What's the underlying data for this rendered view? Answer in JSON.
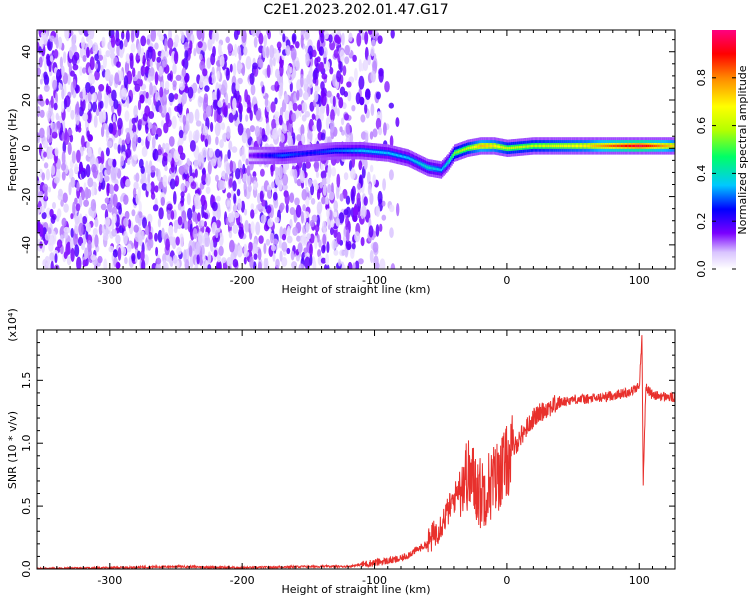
{
  "title": "C2E1.2023.202.01.47.G17",
  "chart_data": [
    {
      "type": "heatmap",
      "xlabel": "Height of straight line (km)",
      "ylabel": "Frequency (Hz)",
      "xlim": [
        -355,
        127
      ],
      "ylim": [
        -50,
        49
      ],
      "xticks": [
        -300,
        -200,
        -100,
        0,
        100
      ],
      "yticks": [
        -40,
        -20,
        0,
        20,
        40
      ],
      "colorbar": {
        "label": "Normalized spectral amplitude",
        "range": [
          0,
          1
        ],
        "ticks": [
          "0.0",
          "0.2",
          "0.4",
          "0.6",
          "0.8"
        ],
        "colors": [
          "#ffffff",
          "#d9c4ff",
          "#7a00ff",
          "#0000ff",
          "#00c8ff",
          "#00ff66",
          "#b4ff00",
          "#ffff00",
          "#ff8800",
          "#ff0000",
          "#ff0080"
        ]
      },
      "signal_band": {
        "x": [
          -195,
          -170,
          -150,
          -130,
          -110,
          -90,
          -75,
          -60,
          -50,
          -45,
          -40,
          -30,
          -20,
          -10,
          0,
          20,
          40,
          60,
          80,
          100,
          127
        ],
        "frequency": [
          -3,
          -3,
          -2,
          -1,
          -1,
          -2,
          -4,
          -8,
          -9,
          -6,
          -2,
          0,
          1,
          1,
          0,
          1,
          1,
          1,
          1,
          1,
          1
        ],
        "amplitude": [
          0.15,
          0.3,
          0.25,
          0.3,
          0.35,
          0.35,
          0.35,
          0.4,
          0.35,
          0.4,
          0.55,
          0.6,
          0.75,
          0.7,
          0.6,
          0.6,
          0.65,
          0.7,
          0.85,
          0.95,
          0.7
        ]
      }
    },
    {
      "type": "line",
      "xlabel": "Height of straight line (km)",
      "ylabel": "SNR (10 * v/v)",
      "y_multiplier": "(x10⁴)",
      "xlim": [
        -355,
        127
      ],
      "ylim": [
        0,
        1.9
      ],
      "xticks": [
        -300,
        -200,
        -100,
        0,
        100
      ],
      "yticks": [
        "0.0",
        "0.5",
        "1.0",
        "1.5"
      ],
      "color": "#e8302c",
      "x": [
        -355,
        -300,
        -250,
        -200,
        -150,
        -120,
        -100,
        -80,
        -60,
        -50,
        -40,
        -35,
        -30,
        -25,
        -20,
        -10,
        0,
        10,
        20,
        30,
        40,
        50,
        60,
        70,
        80,
        90,
        95,
        100,
        102,
        103,
        105,
        110,
        120,
        127
      ],
      "y": [
        0.0,
        0.01,
        0.02,
        0.01,
        0.02,
        0.02,
        0.05,
        0.08,
        0.2,
        0.35,
        0.55,
        0.7,
        0.75,
        0.7,
        0.6,
        0.7,
        0.85,
        1.05,
        1.2,
        1.28,
        1.32,
        1.35,
        1.35,
        1.36,
        1.38,
        1.4,
        1.42,
        1.45,
        1.85,
        0.7,
        1.45,
        1.38,
        1.37,
        1.36
      ]
    }
  ]
}
